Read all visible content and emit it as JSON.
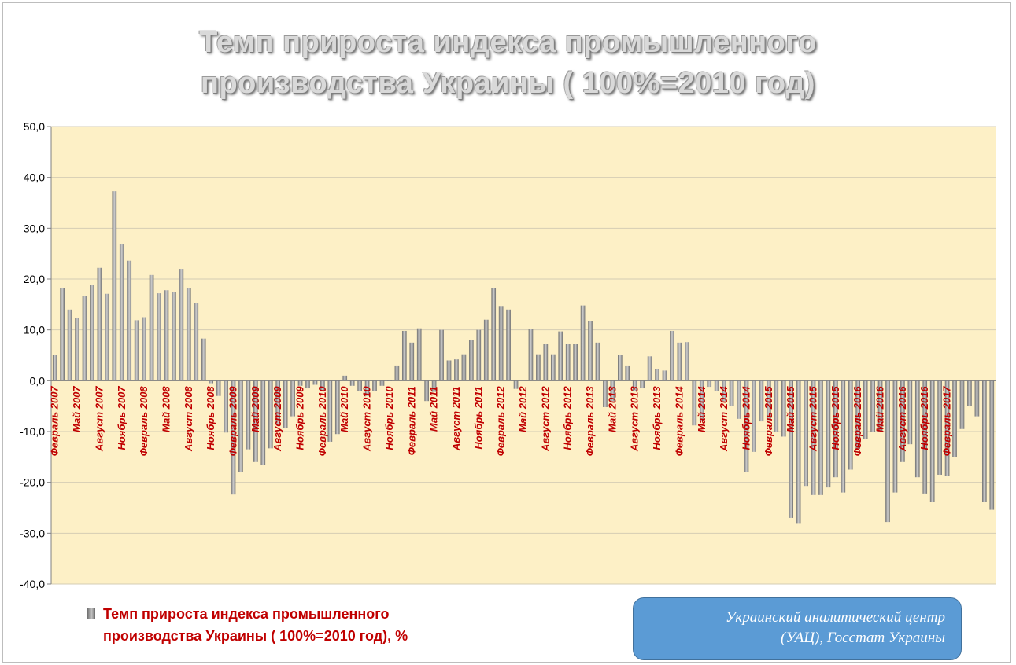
{
  "title": {
    "line1": "Темп прироста индекса промышленного",
    "line2": "производства Украины ( 100%=2010 год)"
  },
  "legend": {
    "label_line1": "Темп прироста индекса промышленного",
    "label_line2": "производства Украины ( 100%=2010 год), %"
  },
  "source": {
    "line1": "Украинский аналитический центр",
    "line2": "(УАЦ), Госстат Украины"
  },
  "colors": {
    "plot_background": "#fdf0c6",
    "bar": "#9d9d9d",
    "category_label": "#c00000",
    "gridline": "#d4cdb4",
    "source_box": "#5b9bd5"
  },
  "chart_data": {
    "type": "bar",
    "title": "Темп прироста индекса промышленного производства Украины ( 100%=2010 год)",
    "xlabel": "",
    "ylabel": "",
    "ylim": [
      -40,
      50
    ],
    "yticks": [
      "50,0",
      "40,0",
      "30,0",
      "20,0",
      "10,0",
      "0,0",
      "-10,0",
      "-20,0",
      "-30,0",
      "-40,0"
    ],
    "grid": true,
    "legend_position": "bottom-left",
    "x_tick_labels": [
      "Февраль 2007",
      "Май 2007",
      "Август 2007",
      "Ноябрь 2007",
      "Февраль 2008",
      "Май 2008",
      "Август 2008",
      "Ноябрь 2008",
      "Февраль 2009",
      "Май 2009",
      "Август 2009",
      "Ноябрь 2009",
      "Февраль 2010",
      "Май 2010",
      "Август 2010",
      "Ноябрь 2010",
      "Февраль 2011",
      "Май 2011",
      "Август 2011",
      "Ноябрь 2011",
      "Февраль 2012",
      "Май 2012",
      "Август 2012",
      "Ноябрь 2012",
      "Февраль 2013",
      "Май 2013",
      "Август 2013",
      "Ноябрь 2013",
      "Февраль 2014",
      "Май 2014",
      "Август 2014",
      "Ноябрь 2014",
      "Февраль 2015",
      "Май 2015",
      "Август 2015",
      "Ноябрь 2015",
      "Февраль 2016",
      "Май 2016",
      "Август 2016",
      "Ноябрь 2016",
      "Февраль 2017"
    ],
    "series": [
      {
        "name": "Темп прироста индекса промышленного производства Украины ( 100%=2010 год), %",
        "values": [
          5.0,
          18.2,
          14.0,
          12.3,
          16.6,
          18.8,
          22.2,
          17.1,
          37.3,
          26.8,
          23.6,
          11.9,
          12.5,
          20.8,
          17.2,
          17.8,
          17.5,
          22.0,
          18.2,
          15.3,
          8.3,
          -0.5,
          -3.0,
          -10.2,
          -22.4,
          -18.0,
          -13.5,
          -16.0,
          -16.5,
          -13.3,
          -8.6,
          -9.3,
          -7.0,
          -1.0,
          -1.5,
          -0.8,
          -2.0,
          -12.0,
          -10.5,
          1.0,
          -1.0,
          -2.0,
          -3.0,
          -2.0,
          -1.0,
          0.0,
          3.0,
          9.8,
          7.5,
          10.3,
          -4.0,
          -2.2,
          10.0,
          4.0,
          4.2,
          5.2,
          8.0,
          10.0,
          12.0,
          18.2,
          14.7,
          14.0,
          -1.6,
          0.2,
          10.1,
          5.2,
          7.3,
          5.2,
          9.7,
          7.3,
          7.3,
          14.8,
          11.7,
          7.5,
          -5.2,
          -4.0,
          5.0,
          3.0,
          -2.0,
          -1.5,
          4.8,
          2.3,
          2.0,
          9.8,
          7.5,
          7.6,
          -8.8,
          -8.0,
          -1.2,
          -2.0,
          -4.0,
          -5.0,
          -7.5,
          -17.9,
          -14.0,
          -8.0,
          -7.7,
          -10.0,
          -11.0,
          -27.0,
          -28.0,
          -20.7,
          -22.5,
          -22.5,
          -21.0,
          -19.0,
          -22.0,
          -17.5,
          -13.4,
          -11.5,
          -10.0,
          -10.0,
          -27.8,
          -22.0,
          -16.0,
          -12.5,
          -19.0,
          -22.2,
          -23.8,
          -18.5,
          -18.8,
          -15.0,
          -9.5,
          -5.0,
          -7.0,
          -23.8,
          -25.4
        ]
      }
    ]
  }
}
